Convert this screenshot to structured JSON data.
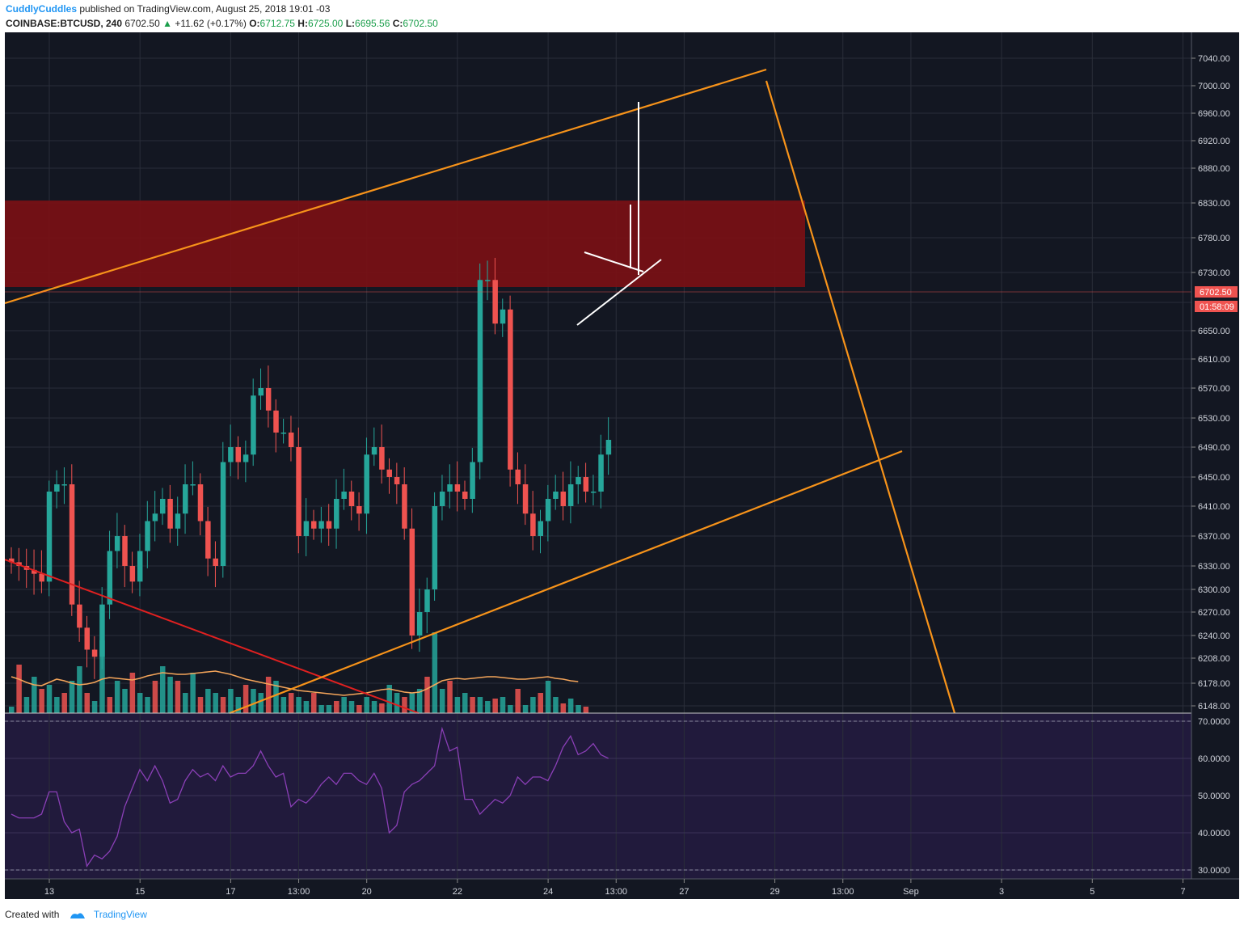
{
  "header": {
    "author": "CuddlyCuddles",
    "published": "published on TradingView.com, August 25, 2018 19:01 -03",
    "symbol": "COINBASE:BTCUSD, 240",
    "last": "6702.50",
    "change": "+11.62 (+0.17%)",
    "o_label": "O:",
    "o_value": "6712.75",
    "h_label": "H:",
    "h_value": "6725.00",
    "l_label": "L:",
    "l_value": "6695.56",
    "c_label": "C:",
    "c_value": "6702.50"
  },
  "footer": {
    "created": "Created with",
    "brand": "TradingView"
  },
  "colors": {
    "background": "#131722",
    "rsi_background": "#211a3c",
    "up": "#26a69a",
    "down": "#ef5350",
    "zone": "#7a1015",
    "trendline": "#f7931a",
    "downtrend": "#e02020",
    "annotation": "#ffffff",
    "rsi_line": "#8a3fb6",
    "price_tag": "#ef5350"
  },
  "chart_data": {
    "type": "candlestick",
    "symbol": "COINBASE:BTCUSD",
    "interval": "240",
    "price_axis": {
      "ticks": [
        7040,
        7000,
        6960,
        6920,
        6880,
        6830,
        6780,
        6730,
        6690,
        6650,
        6610,
        6570,
        6530,
        6490,
        6450,
        6410,
        6370,
        6330,
        6300,
        6270,
        6240,
        6208,
        6178,
        6148
      ],
      "labels": [
        "7040.00",
        "7000.00",
        "6960.00",
        "6920.00",
        "6880.00",
        "6830.00",
        "6780.00",
        "6730.00",
        "",
        "6650.00",
        "6610.00",
        "6570.00",
        "6530.00",
        "6490.00",
        "6450.00",
        "6410.00",
        "6370.00",
        "6330.00",
        "6300.00",
        "6270.00",
        "6240.00",
        "6208.00",
        "6178.00",
        "6148.00"
      ]
    },
    "last_price_label": "6702.50",
    "countdown_label": "01:58:09",
    "time_axis": {
      "labels": [
        "13",
        "15",
        "17",
        "13:00",
        "20",
        "22",
        "24",
        "13:00",
        "27",
        "29",
        "13:00",
        "Sep",
        "3",
        "5",
        "7"
      ],
      "positions": [
        0,
        12,
        24,
        33,
        42,
        54,
        66,
        75,
        84,
        96,
        105,
        114,
        126,
        138,
        150
      ]
    },
    "rsi": {
      "levels": [
        70,
        60,
        50,
        40,
        30
      ],
      "labels": [
        "70.0000",
        "60.0000",
        "50.0000",
        "40.0000",
        "30.0000"
      ],
      "upper": 70,
      "lower": 30,
      "values": [
        45,
        44,
        44,
        44,
        45,
        51,
        51,
        43,
        40,
        41,
        31,
        34,
        33,
        35,
        39,
        47,
        52,
        57,
        54,
        58,
        54,
        48,
        49,
        54,
        57,
        55,
        56,
        54,
        58,
        55,
        56,
        56,
        58,
        62,
        58,
        55,
        56,
        47,
        49,
        48,
        50,
        53,
        55,
        53,
        56,
        56,
        54,
        53,
        56,
        52,
        40,
        42,
        51,
        53,
        54,
        56,
        58,
        68,
        62,
        63,
        49,
        49,
        45,
        47,
        49,
        48,
        50,
        55,
        53,
        55,
        55,
        54,
        58,
        63,
        66,
        61,
        62,
        64,
        61,
        60
      ],
      "color": "#8a3fb6"
    },
    "volume_ma": [
      215,
      212,
      208,
      205,
      204,
      208,
      212,
      210,
      207,
      205,
      206,
      208,
      212,
      214,
      213,
      212,
      211,
      213,
      216,
      218,
      220,
      219,
      218,
      218,
      219,
      220,
      221,
      222,
      220,
      218,
      215,
      212,
      210,
      208,
      206,
      204,
      202,
      200,
      198,
      197,
      196,
      195,
      194,
      193,
      192,
      193,
      194,
      195,
      197,
      199,
      200,
      198,
      196,
      195,
      196,
      200,
      205,
      210,
      212,
      213,
      212,
      213,
      214,
      215,
      215,
      214,
      213,
      212,
      212,
      213,
      214,
      215,
      213,
      212,
      210,
      209
    ],
    "volume": [
      8,
      60,
      20,
      45,
      30,
      35,
      20,
      25,
      40,
      58,
      25,
      15,
      90,
      20,
      40,
      30,
      50,
      25,
      20,
      40,
      58,
      45,
      40,
      25,
      50,
      20,
      30,
      25,
      20,
      30,
      20,
      35,
      30,
      25,
      45,
      40,
      20,
      25,
      20,
      15,
      25,
      10,
      10,
      15,
      20,
      15,
      10,
      20,
      15,
      12,
      35,
      25,
      20,
      25,
      30,
      45,
      100,
      30,
      40,
      20,
      25,
      20,
      20,
      15,
      18,
      20,
      10,
      30,
      10,
      20,
      25,
      40,
      20,
      12,
      18,
      10,
      8
    ]
  }
}
